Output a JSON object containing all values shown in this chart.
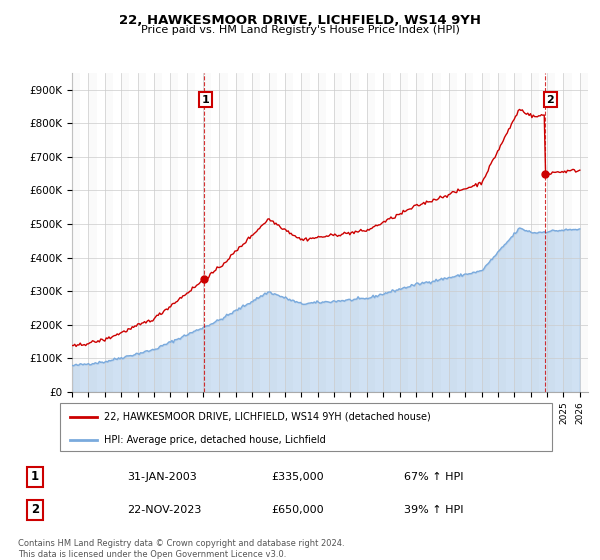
{
  "title": "22, HAWKESMOOR DRIVE, LICHFIELD, WS14 9YH",
  "subtitle": "Price paid vs. HM Land Registry's House Price Index (HPI)",
  "legend_label_red": "22, HAWKESMOOR DRIVE, LICHFIELD, WS14 9YH (detached house)",
  "legend_label_blue": "HPI: Average price, detached house, Lichfield",
  "annotation1_date": "31-JAN-2003",
  "annotation1_price": "£335,000",
  "annotation1_hpi": "67% ↑ HPI",
  "annotation2_date": "22-NOV-2023",
  "annotation2_price": "£650,000",
  "annotation2_hpi": "39% ↑ HPI",
  "footer": "Contains HM Land Registry data © Crown copyright and database right 2024.\nThis data is licensed under the Open Government Licence v3.0.",
  "red_color": "#cc0000",
  "blue_color": "#7aaadd",
  "ylim_max": 950000,
  "ylim_min": 0,
  "year_start": 1995,
  "year_end": 2026,
  "sale1_year": 2003.08,
  "sale1_price": 335000,
  "sale2_year": 2023.9,
  "sale2_price": 650000
}
